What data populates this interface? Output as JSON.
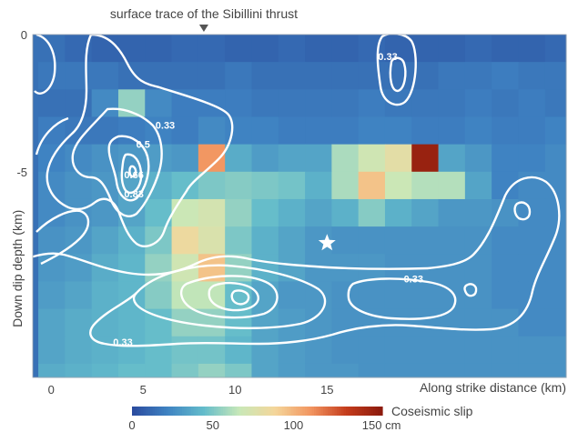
{
  "chart_data": {
    "type": "heatmap",
    "title": "",
    "annotation": "surface trace of the Sibillini thrust",
    "xlabel": "Along strike distance (km)",
    "ylabel": "Down dip depth (km)",
    "xlim": [
      -1,
      28
    ],
    "ylim": [
      -12.5,
      0
    ],
    "x_ticks": [
      0,
      5,
      10,
      15
    ],
    "x_tick_labels": [
      "0",
      "5",
      "10",
      "15"
    ],
    "y_ticks": [
      0,
      -5
    ],
    "y_tick_labels": [
      "0",
      "-5"
    ],
    "surface_trace_x_km": 8.3,
    "hypocenter": {
      "x_km": 15,
      "depth_km": -7.6
    },
    "colorbar": {
      "label": "Coseismic slip",
      "unit": "cm",
      "range": [
        0,
        155
      ],
      "ticks": [
        0,
        50,
        100,
        150
      ],
      "tick_labels": [
        "0",
        "50",
        "100",
        "150 cm"
      ],
      "colors": [
        "#2a4a9e",
        "#3f83c2",
        "#63bccb",
        "#c8e8b8",
        "#f4d69a",
        "#f29560",
        "#c43c1c",
        "#8b1a0d"
      ]
    },
    "grid": {
      "x_edges_start": -0.7,
      "cell_width_km": 1.45,
      "depth_edges_start": 0,
      "cell_height_km": 1.0,
      "rows_top_to_bottom_slip_cm": [
        [
          15,
          12,
          10,
          10,
          10,
          12,
          12,
          10,
          10,
          12,
          10,
          10,
          12,
          10,
          10,
          10,
          12,
          10,
          10,
          12
        ],
        [
          18,
          18,
          18,
          15,
          15,
          15,
          15,
          18,
          15,
          15,
          15,
          15,
          15,
          15,
          15,
          18,
          18,
          20,
          18,
          18
        ],
        [
          15,
          15,
          25,
          55,
          25,
          20,
          20,
          20,
          18,
          18,
          18,
          18,
          20,
          18,
          18,
          18,
          20,
          18,
          20,
          18
        ],
        [
          20,
          18,
          18,
          20,
          22,
          20,
          25,
          22,
          22,
          20,
          20,
          20,
          22,
          22,
          20,
          20,
          22,
          20,
          20,
          22
        ],
        [
          22,
          25,
          28,
          30,
          32,
          30,
          110,
          38,
          32,
          35,
          35,
          60,
          70,
          80,
          150,
          35,
          30,
          22,
          22,
          25
        ],
        [
          25,
          28,
          30,
          35,
          40,
          45,
          50,
          52,
          50,
          48,
          40,
          60,
          95,
          68,
          62,
          62,
          35,
          22,
          25,
          25
        ],
        [
          25,
          28,
          30,
          35,
          45,
          68,
          72,
          55,
          45,
          40,
          35,
          40,
          52,
          40,
          35,
          30,
          30,
          28,
          25,
          25
        ],
        [
          28,
          30,
          35,
          40,
          50,
          85,
          75,
          50,
          40,
          35,
          30,
          28,
          28,
          28,
          28,
          28,
          28,
          25,
          25,
          25
        ],
        [
          30,
          32,
          38,
          42,
          55,
          70,
          95,
          55,
          40,
          35,
          30,
          30,
          30,
          28,
          28,
          28,
          28,
          25,
          25,
          25
        ],
        [
          32,
          35,
          40,
          42,
          52,
          65,
          65,
          45,
          35,
          30,
          30,
          28,
          28,
          28,
          28,
          28,
          28,
          25,
          25,
          25
        ],
        [
          35,
          38,
          40,
          42,
          45,
          55,
          55,
          45,
          35,
          32,
          30,
          28,
          28,
          28,
          28,
          28,
          28,
          28,
          25,
          25
        ],
        [
          35,
          38,
          40,
          42,
          45,
          48,
          48,
          42,
          35,
          32,
          30,
          28,
          28,
          28,
          28,
          28,
          28,
          28,
          28,
          28
        ],
        [
          38,
          40,
          42,
          45,
          45,
          50,
          55,
          50,
          35,
          32,
          30,
          30,
          28,
          28,
          28,
          28,
          28,
          28,
          28,
          28
        ]
      ]
    },
    "contours": [
      {
        "label": "0.33",
        "label_x_km": 18.3,
        "label_depth_km": -0.8
      },
      {
        "label": "0.33",
        "label_x_km": 6.2,
        "label_depth_km": -3.3
      },
      {
        "label": "0.5",
        "label_x_km": 5.0,
        "label_depth_km": -4.0
      },
      {
        "label": "0.66",
        "label_x_km": 4.5,
        "label_depth_km": -5.1
      },
      {
        "label": "0.83",
        "label_x_km": 4.5,
        "label_depth_km": -5.8
      },
      {
        "label": "0.33",
        "label_x_km": 19.7,
        "label_depth_km": -8.9
      },
      {
        "label": "0.33",
        "label_x_km": 3.9,
        "label_depth_km": -11.2
      }
    ]
  }
}
